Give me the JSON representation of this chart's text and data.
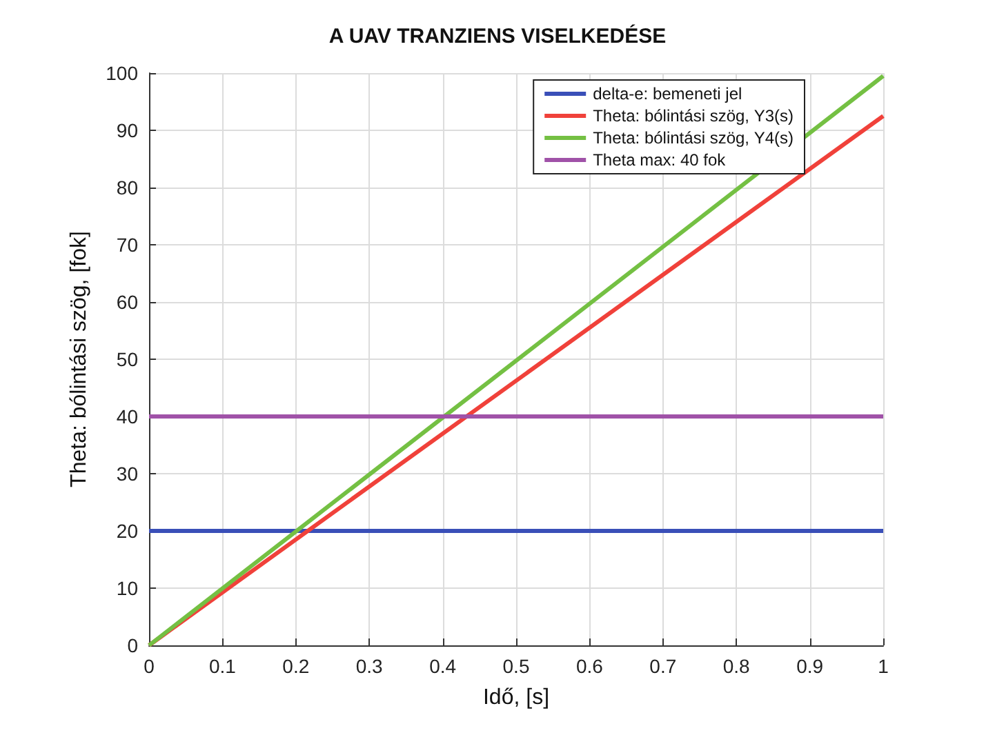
{
  "chart_data": {
    "type": "line",
    "title": "A UAV TRANZIENS VISELKEDÉSE",
    "xlabel": "Idő, [s]",
    "ylabel": "Theta: bólintási szög, [fok]",
    "x": [
      0,
      1
    ],
    "series": [
      {
        "name": "delta-e: bemeneti jel",
        "color": "#3a4fb8",
        "values": [
          20,
          20
        ]
      },
      {
        "name": "Theta: bólintási szög, Υ3(s)",
        "color": "#f0413a",
        "values": [
          0,
          92.5
        ]
      },
      {
        "name": "Theta: bólintási szög, Υ4(s)",
        "color": "#74c043",
        "values": [
          0,
          99.5
        ]
      },
      {
        "name": "Theta max: 40 fok",
        "color": "#a052a8",
        "values": [
          40,
          40
        ]
      }
    ],
    "xlim": [
      0,
      1
    ],
    "xticks": [
      0,
      0.1,
      0.2,
      0.3,
      0.4,
      0.5,
      0.6,
      0.7,
      0.8,
      0.9,
      1
    ],
    "ylim": [
      0,
      100
    ],
    "yticks": [
      0,
      10,
      20,
      30,
      40,
      50,
      60,
      70,
      80,
      90,
      100
    ],
    "grid": true,
    "legend": "top right",
    "marker": "none",
    "line_style": "solid"
  }
}
